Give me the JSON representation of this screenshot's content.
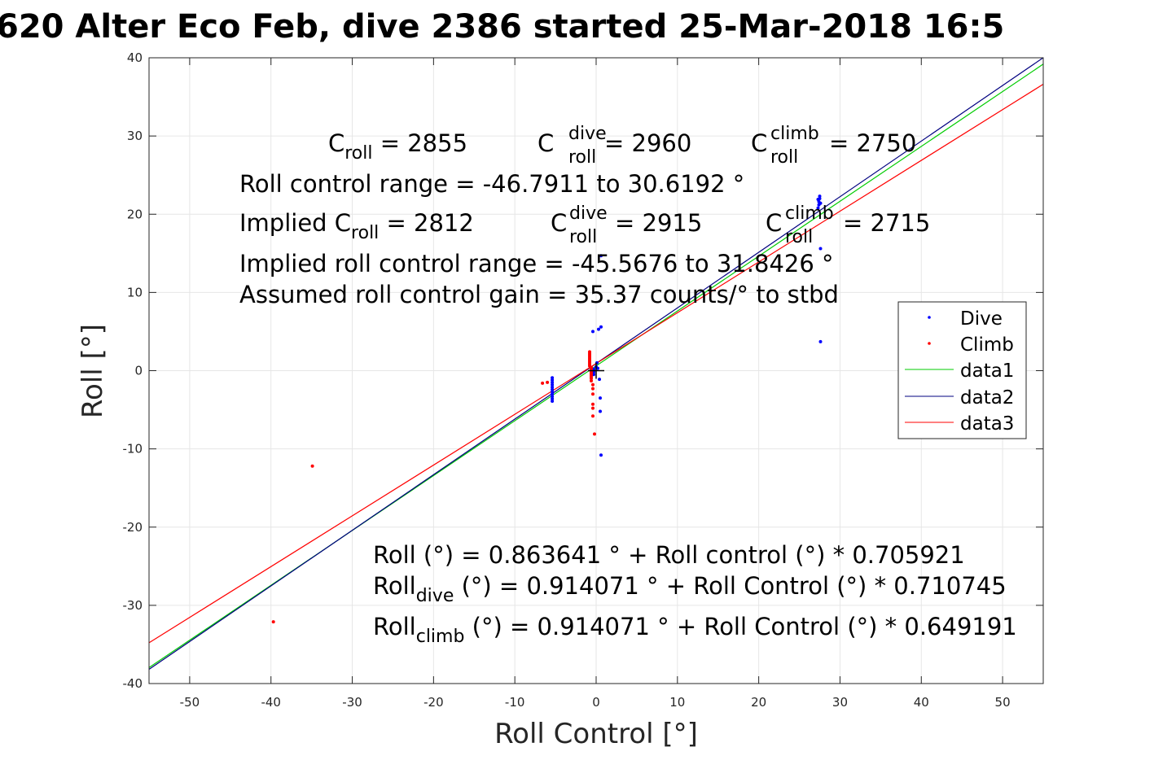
{
  "chart_data": {
    "type": "scatter",
    "title": "620 Alter Eco Feb, dive 2386 started 25-Mar-2018 16:5",
    "xlabel": "Roll Control [°]",
    "ylabel": "Roll [°]",
    "xlim": [
      -55,
      55
    ],
    "ylim": [
      -40,
      40
    ],
    "xticks": [
      "-50",
      "-40",
      "-30",
      "-20",
      "-10",
      "0",
      "10",
      "20",
      "30",
      "40",
      "50"
    ],
    "yticks": [
      "40",
      "30",
      "20",
      "10",
      "0",
      "-10",
      "-20",
      "-30",
      "-40"
    ],
    "grid": true,
    "legend_position": "right",
    "colors": {
      "dive": "#0000ff",
      "climb": "#ff0000",
      "data1": "#00cc00",
      "data2": "#000080",
      "data3": "#ff0000"
    },
    "series": [
      {
        "name": "Dive",
        "kind": "points",
        "points": [
          [
            -5.4,
            -0.9
          ],
          [
            -5.4,
            -1.2
          ],
          [
            -5.4,
            -1.5
          ],
          [
            -5.4,
            -1.8
          ],
          [
            -5.4,
            -2.1
          ],
          [
            -5.4,
            -2.4
          ],
          [
            -5.4,
            -2.7
          ],
          [
            -5.4,
            -3.0
          ],
          [
            -5.4,
            -3.3
          ],
          [
            -5.4,
            -3.6
          ],
          [
            -5.4,
            -3.9
          ],
          [
            -0.3,
            0.2
          ],
          [
            -0.3,
            0.0
          ],
          [
            -0.3,
            -0.2
          ],
          [
            -0.3,
            -0.5
          ],
          [
            0.0,
            0.5
          ],
          [
            0.1,
            1.0
          ],
          [
            0.2,
            0.3
          ],
          [
            -0.4,
            5.0
          ],
          [
            0.3,
            5.3
          ],
          [
            0.6,
            5.6
          ],
          [
            0.4,
            -1.1
          ],
          [
            0.5,
            -3.5
          ],
          [
            0.5,
            -5.2
          ],
          [
            0.6,
            -10.8
          ],
          [
            0.6,
            14.7
          ],
          [
            27.3,
            20.8
          ],
          [
            27.4,
            21.2
          ],
          [
            27.4,
            21.6
          ],
          [
            27.5,
            22.0
          ],
          [
            27.5,
            22.3
          ],
          [
            27.3,
            21.9
          ],
          [
            27.6,
            21.4
          ],
          [
            27.6,
            15.6
          ],
          [
            27.6,
            3.7
          ]
        ]
      },
      {
        "name": "Climb",
        "kind": "points",
        "points": [
          [
            -6.6,
            -1.6
          ],
          [
            -6.0,
            -1.5
          ],
          [
            -0.8,
            2.4
          ],
          [
            -0.8,
            2.2
          ],
          [
            -0.8,
            2.0
          ],
          [
            -0.8,
            1.8
          ],
          [
            -0.8,
            1.6
          ],
          [
            -0.8,
            1.4
          ],
          [
            -0.8,
            1.2
          ],
          [
            -0.8,
            1.0
          ],
          [
            -0.8,
            0.8
          ],
          [
            -0.8,
            0.6
          ],
          [
            -0.6,
            0.4
          ],
          [
            -0.6,
            0.2
          ],
          [
            -0.6,
            0.0
          ],
          [
            -0.6,
            -0.2
          ],
          [
            -0.6,
            -0.4
          ],
          [
            -0.6,
            -0.6
          ],
          [
            -0.6,
            -0.8
          ],
          [
            -0.6,
            -1.0
          ],
          [
            -0.6,
            -1.3
          ],
          [
            -0.4,
            -1.8
          ],
          [
            -0.4,
            -2.3
          ],
          [
            -0.4,
            -3.0
          ],
          [
            -0.4,
            -4.3
          ],
          [
            -0.4,
            -4.8
          ],
          [
            -0.4,
            -5.8
          ],
          [
            -0.2,
            -8.1
          ],
          [
            -34.9,
            -12.2
          ],
          [
            -39.7,
            -32.1
          ]
        ]
      },
      {
        "name": "data1",
        "kind": "line",
        "points": [
          [
            -55,
            -37.96
          ],
          [
            55,
            39.19
          ]
        ]
      },
      {
        "name": "data2",
        "kind": "line",
        "points": [
          [
            -55,
            -38.18
          ],
          [
            55,
            40.01
          ]
        ]
      },
      {
        "name": "data3",
        "kind": "line",
        "points": [
          [
            -55,
            -34.79
          ],
          [
            55,
            36.62
          ]
        ]
      }
    ],
    "crosshair": {
      "x": 0,
      "y": 0
    },
    "annotations_top": {
      "line1": [
        {
          "base": "C",
          "sub": "roll",
          "sup": "",
          "rest": " = 2855"
        },
        {
          "base": "C",
          "sub": "roll",
          "sup": "dive",
          "rest": " = 2960"
        },
        {
          "base": "C",
          "sub": "roll",
          "sup": "climb",
          "rest": " = 2750"
        }
      ],
      "range": "Roll control range = -46.7911 to 30.6192 °",
      "implied_prefix": "Implied",
      "line3": [
        {
          "base": "C",
          "sub": "roll",
          "sup": "",
          "rest": " = 2812"
        },
        {
          "base": "C",
          "sub": "roll",
          "sup": "dive",
          "rest": " = 2915"
        },
        {
          "base": "C",
          "sub": "roll",
          "sup": "climb",
          "rest": " = 2715"
        }
      ],
      "implied_range": "Implied roll control range = -45.5676 to 31.8426 °",
      "gain": "Assumed roll control gain = 35.37 counts/° to stbd"
    },
    "annotations_bottom": {
      "fit": "Roll (°) = 0.863641 ° + Roll control (°) * 0.705921",
      "dive_base": "Roll",
      "dive_sub": "dive",
      "dive_rest": " (°) = 0.914071 ° + Roll Control (°) * 0.710745",
      "climb_base": "Roll",
      "climb_sub": "climb",
      "climb_rest": " (°) = 0.914071 ° + Roll Control (°) * 0.649191"
    }
  }
}
